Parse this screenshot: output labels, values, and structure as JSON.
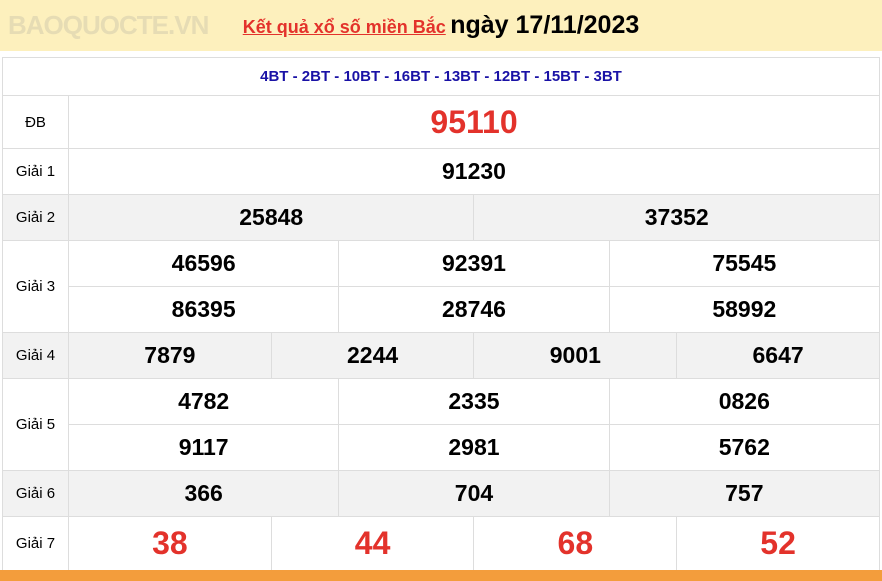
{
  "header": {
    "title_link": "Kết quả xổ số miền Bắc",
    "date": "ngày 17/11/2023"
  },
  "codes": "4BT - 2BT - 10BT - 16BT - 13BT - 12BT - 15BT - 3BT",
  "prizes": {
    "db": {
      "label": "ĐB",
      "values": [
        "95110"
      ]
    },
    "g1": {
      "label": "Giải 1",
      "values": [
        "91230"
      ]
    },
    "g2": {
      "label": "Giải 2",
      "values": [
        "25848",
        "37352"
      ]
    },
    "g3": {
      "label": "Giải 3",
      "values": [
        "46596",
        "92391",
        "75545",
        "86395",
        "28746",
        "58992"
      ]
    },
    "g4": {
      "label": "Giải 4",
      "values": [
        "7879",
        "2244",
        "9001",
        "6647"
      ]
    },
    "g5": {
      "label": "Giải 5",
      "values": [
        "4782",
        "2335",
        "0826",
        "9117",
        "2981",
        "5762"
      ]
    },
    "g6": {
      "label": "Giải 6",
      "values": [
        "366",
        "704",
        "757"
      ]
    },
    "g7": {
      "label": "Giải 7",
      "values": [
        "38",
        "44",
        "68",
        "52"
      ]
    }
  },
  "watermark": "BAOQUOCTE.VN",
  "colors": {
    "header_bg": "#fdf0bd",
    "red": "#e3322b",
    "code_blue": "#1a12a6",
    "footer": "#f39d3c"
  }
}
